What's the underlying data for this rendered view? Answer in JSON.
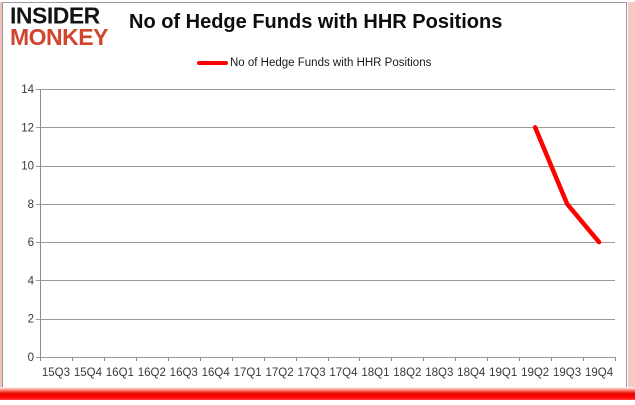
{
  "header": {
    "logo_line1": "INSIDER",
    "logo_line2": "MONKEY",
    "title": "No of Hedge Funds with HHR Positions"
  },
  "legend": {
    "label": "No of Hedge Funds with HHR Positions",
    "marker_color": "#ff0000"
  },
  "chart_data": {
    "type": "line",
    "title": "No of Hedge Funds with HHR Positions",
    "categories": [
      "15Q3",
      "15Q4",
      "16Q1",
      "16Q2",
      "16Q3",
      "16Q4",
      "17Q1",
      "17Q2",
      "17Q3",
      "17Q4",
      "18Q1",
      "18Q2",
      "18Q3",
      "18Q4",
      "19Q1",
      "19Q2",
      "19Q3",
      "19Q4"
    ],
    "series": [
      {
        "name": "No of Hedge Funds with HHR Positions",
        "color": "#ff0000",
        "values": [
          null,
          null,
          null,
          null,
          null,
          null,
          null,
          null,
          null,
          null,
          null,
          null,
          null,
          null,
          null,
          12,
          8,
          6
        ]
      }
    ],
    "xlabel": "",
    "ylabel": "",
    "ylim": [
      0,
      14
    ],
    "ytick_step": 2,
    "grid": true,
    "legend_position": "top-center"
  },
  "colors": {
    "background": "#ffffff",
    "grid": "#9b9b9b",
    "axis": "#8c8c8c",
    "tick_label": "#3a3a3a",
    "frame_border": "#9a9a9a",
    "bottom_bar": "#ff0000",
    "side_strip": "#f6c9c3",
    "logo_accent": "#d0452e",
    "title_color": "#0d0d0d"
  }
}
